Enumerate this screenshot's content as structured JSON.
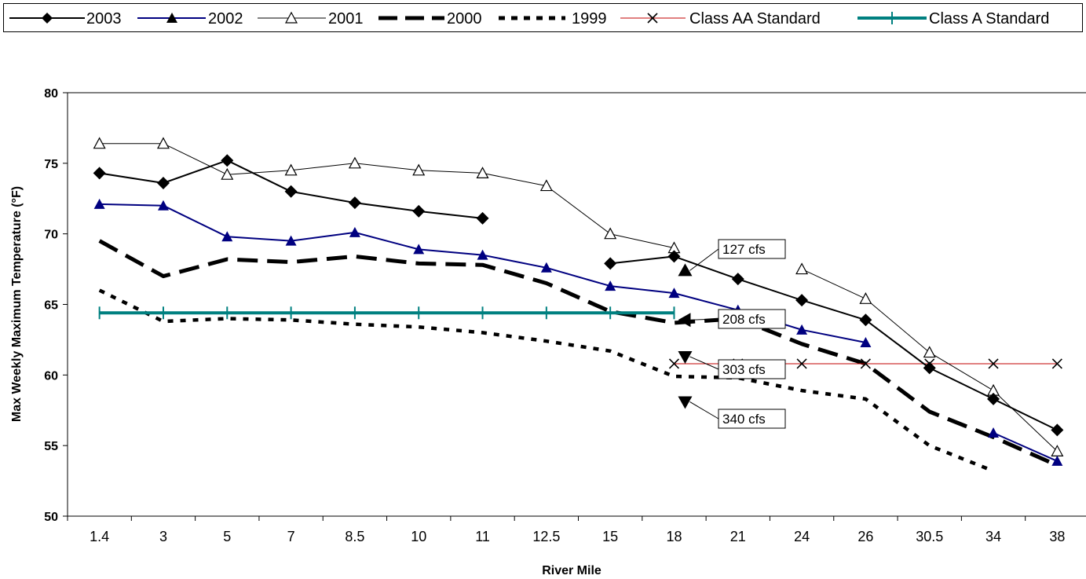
{
  "chart_data": {
    "type": "line",
    "categories": [
      "1.4",
      "3",
      "5",
      "7",
      "8.5",
      "10",
      "11",
      "12.5",
      "15",
      "18",
      "21",
      "24",
      "26",
      "30.5",
      "34",
      "38"
    ],
    "xlabel": "River Mile",
    "ylabel": "Max Weekly Maximum Temperature (°F)",
    "ylim": [
      50,
      80
    ],
    "yticks": [
      50,
      55,
      60,
      65,
      70,
      75,
      80
    ],
    "grid": false,
    "legend_position": "top",
    "series": [
      {
        "name": "2003",
        "color": "#000000",
        "marker": "diamond",
        "line": "solid",
        "values": [
          74.3,
          73.6,
          75.2,
          73.0,
          72.2,
          71.6,
          71.1,
          null,
          67.9,
          68.4,
          66.8,
          65.3,
          63.9,
          60.5,
          58.3,
          56.1
        ]
      },
      {
        "name": "2002",
        "color": "#000080",
        "marker": "triangle",
        "line": "solid",
        "values": [
          72.1,
          72.0,
          69.8,
          69.5,
          70.1,
          68.9,
          68.5,
          67.6,
          66.3,
          65.8,
          64.6,
          63.2,
          62.3,
          null,
          55.9,
          53.9
        ]
      },
      {
        "name": "2001",
        "color": "#000000",
        "marker": "triangle-open",
        "line": "thin",
        "values": [
          76.4,
          76.4,
          74.2,
          74.5,
          75.0,
          74.5,
          74.3,
          73.4,
          70.0,
          69.0,
          null,
          67.5,
          65.4,
          61.6,
          58.9,
          54.6
        ]
      },
      {
        "name": "2000",
        "color": "#000000",
        "marker": "none",
        "line": "long-dash",
        "values": [
          69.5,
          67.0,
          68.2,
          68.0,
          68.4,
          67.9,
          67.8,
          66.5,
          64.5,
          63.7,
          64.0,
          62.2,
          60.8,
          57.4,
          55.6,
          53.6
        ]
      },
      {
        "name": "1999",
        "color": "#000000",
        "marker": "none",
        "line": "dotted",
        "values": [
          66.0,
          63.8,
          64.0,
          63.9,
          63.6,
          63.4,
          63.0,
          62.4,
          61.7,
          59.9,
          59.8,
          58.9,
          58.3,
          55.0,
          53.2,
          null
        ]
      },
      {
        "name": "Class AA Standard",
        "color": "#c00000",
        "marker": "x",
        "line": "thin",
        "values": [
          null,
          null,
          null,
          null,
          null,
          null,
          null,
          null,
          null,
          60.8,
          60.8,
          60.8,
          60.8,
          60.8,
          60.8,
          60.8
        ]
      },
      {
        "name": "Class A Standard",
        "color": "#008080",
        "marker": "plus",
        "line": "thick",
        "values": [
          64.4,
          64.4,
          64.4,
          64.4,
          64.4,
          64.4,
          64.4,
          64.4,
          64.4,
          64.4,
          null,
          null,
          null,
          null,
          null,
          null
        ]
      }
    ],
    "annotations": [
      {
        "label": "127 cfs",
        "marker": "up-triangle",
        "value": 67.4
      },
      {
        "label": "208 cfs",
        "marker": "left-triangle",
        "value": 63.9
      },
      {
        "label": "303 cfs",
        "marker": "down-triangle",
        "value": 61.3
      },
      {
        "label": "340 cfs",
        "marker": "down-triangle",
        "value": 58.1
      }
    ]
  }
}
